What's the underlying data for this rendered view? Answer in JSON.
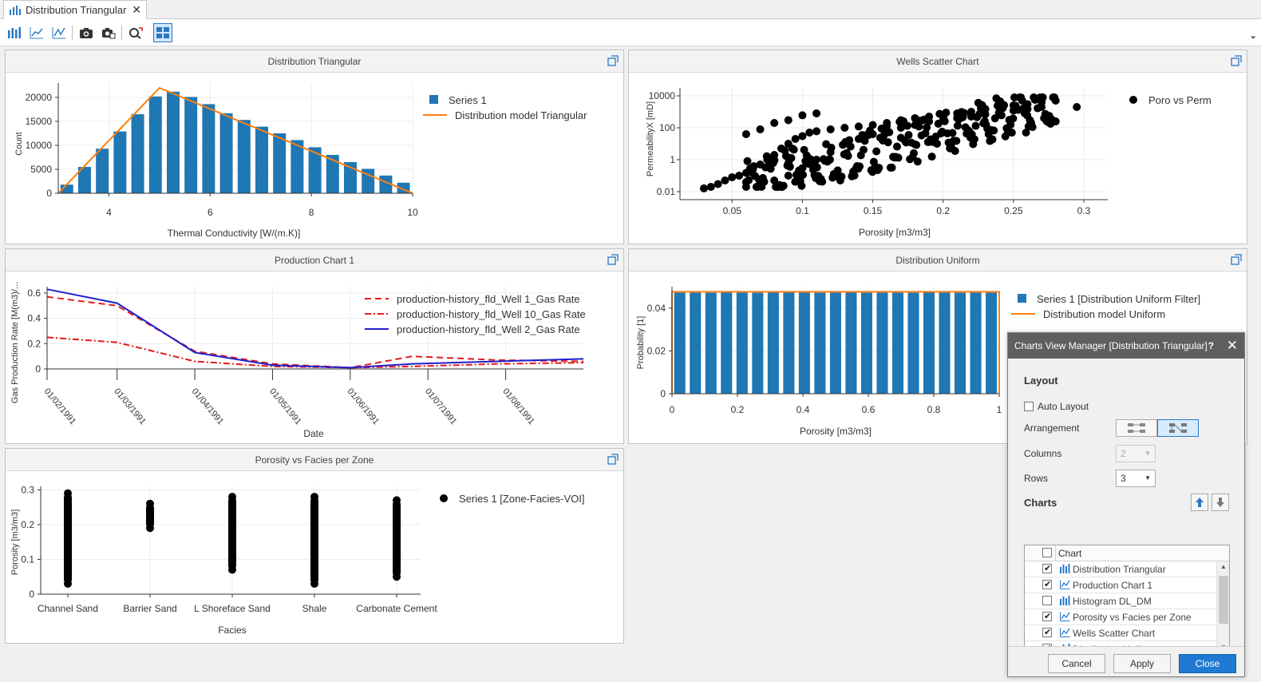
{
  "tab": {
    "title": "Distribution Triangular",
    "close": "✕"
  },
  "toolbar": {
    "icons": [
      "bar-chart-icon",
      "line-chart-icon",
      "scatter-chart-icon",
      "camera-icon",
      "camera-copy-icon",
      "refresh-chart-icon",
      "layout-grid-icon"
    ],
    "overflow": "⏷"
  },
  "panels": {
    "p1": "Distribution Triangular",
    "p2": "Wells Scatter Chart",
    "p3": "Production Chart 1",
    "p4": "Distribution Uniform",
    "p5": "Porosity vs Facies per Zone"
  },
  "chart_data": [
    {
      "type": "bar",
      "title": "Distribution Triangular",
      "xlabel": "Thermal Conductivity [W/(m.K)]",
      "ylabel": "Count",
      "xlim": [
        3,
        10
      ],
      "ylim": [
        0,
        23000
      ],
      "xticks": [
        4,
        6,
        8,
        10
      ],
      "yticks": [
        0,
        5000,
        10000,
        15000,
        20000
      ],
      "yticklabels": [
        "0",
        "5000",
        "10000",
        "15000",
        "20000"
      ],
      "bin_width": 0.35,
      "bars_x": [
        3.17,
        3.52,
        3.87,
        4.22,
        4.57,
        4.92,
        5.27,
        5.62,
        5.97,
        6.32,
        6.67,
        7.02,
        7.37,
        7.72,
        8.07,
        8.42,
        8.77,
        9.12,
        9.47,
        9.82
      ],
      "bars_y": [
        1800,
        5500,
        9300,
        12900,
        16500,
        20200,
        21200,
        20100,
        18600,
        16700,
        15300,
        13900,
        12500,
        11100,
        9600,
        8000,
        6500,
        5100,
        3700,
        2200
      ],
      "series": [
        {
          "name": "Series 1",
          "color": "#1f77b4"
        },
        {
          "name": "Distribution model Triangular",
          "color": "#ff7f0e",
          "x": [
            3,
            5,
            10
          ],
          "y": [
            0,
            22000,
            0
          ]
        }
      ],
      "grid": true,
      "legend": "top-right"
    },
    {
      "type": "scatter",
      "title": "Wells Scatter Chart",
      "xlabel": "Porosity [m3/m3]",
      "ylabel": "PermeabilityX [mD]",
      "xlim": [
        0.03,
        0.3
      ],
      "ylim": [
        0.01,
        10000
      ],
      "yscale": "log",
      "xticks": [
        0.05,
        0.1,
        0.15,
        0.2,
        0.25,
        0.3
      ],
      "xticklabels": [
        "0.05",
        "0.1",
        "0.15",
        "0.2",
        "0.25",
        "0.3"
      ],
      "yticks": [
        0.01,
        1,
        100,
        10000
      ],
      "yticklabels": [
        "0.01",
        "1",
        "100",
        "10000"
      ],
      "series": [
        {
          "name": "Poro vs Perm",
          "color": "#000000"
        }
      ],
      "points": [
        [
          0.03,
          0.016
        ],
        [
          0.035,
          0.02
        ],
        [
          0.04,
          0.03
        ],
        [
          0.045,
          0.05
        ],
        [
          0.05,
          0.08
        ],
        [
          0.055,
          0.1
        ],
        [
          0.06,
          0.15
        ],
        [
          0.065,
          0.3
        ],
        [
          0.07,
          0.5
        ],
        [
          0.075,
          1
        ],
        [
          0.08,
          2
        ],
        [
          0.085,
          5
        ],
        [
          0.09,
          10
        ],
        [
          0.095,
          20
        ],
        [
          0.1,
          30
        ],
        [
          0.105,
          50
        ],
        [
          0.11,
          60
        ],
        [
          0.12,
          80
        ],
        [
          0.13,
          100
        ],
        [
          0.14,
          120
        ],
        [
          0.15,
          150
        ],
        [
          0.16,
          200
        ],
        [
          0.17,
          300
        ],
        [
          0.18,
          400
        ],
        [
          0.19,
          500
        ],
        [
          0.2,
          600
        ],
        [
          0.21,
          800
        ],
        [
          0.22,
          1000
        ],
        [
          0.23,
          1500
        ],
        [
          0.24,
          2000
        ],
        [
          0.25,
          2500
        ],
        [
          0.26,
          3000
        ],
        [
          0.27,
          4000
        ],
        [
          0.28,
          5000
        ],
        [
          0.295,
          2000
        ],
        [
          0.06,
          40
        ],
        [
          0.07,
          80
        ],
        [
          0.08,
          200
        ],
        [
          0.09,
          300
        ],
        [
          0.1,
          600
        ],
        [
          0.11,
          800
        ],
        [
          0.06,
          0.02
        ],
        [
          0.07,
          0.03
        ],
        [
          0.08,
          0.05
        ],
        [
          0.09,
          0.1
        ],
        [
          0.1,
          0.3
        ],
        [
          0.11,
          1
        ],
        [
          0.12,
          3
        ],
        [
          0.13,
          10
        ],
        [
          0.14,
          20
        ],
        [
          0.15,
          40
        ],
        [
          0.16,
          60
        ],
        [
          0.17,
          100
        ],
        [
          0.18,
          150
        ],
        [
          0.19,
          250
        ],
        [
          0.2,
          300
        ],
        [
          0.21,
          400
        ],
        [
          0.22,
          500
        ],
        [
          0.23,
          700
        ],
        [
          0.24,
          900
        ],
        [
          0.25,
          1200
        ],
        [
          0.26,
          1500
        ],
        [
          0.27,
          2000
        ],
        [
          0.28,
          250
        ]
      ],
      "grid": true,
      "legend": "top-right"
    },
    {
      "type": "line",
      "title": "Production Chart 1",
      "xlabel": "Date",
      "ylabel": "Gas Production Rate [M(m3)/...",
      "xticklabels": [
        "01/02/1991",
        "01/03/1991",
        "01/04/1991",
        "01/05/1991",
        "01/06/1991",
        "01/07/1991",
        "01/08/1991"
      ],
      "xlim": [
        0,
        6.9
      ],
      "ylim": [
        0,
        0.65
      ],
      "yticks": [
        0,
        0.2,
        0.4,
        0.6
      ],
      "yticklabels": [
        "0",
        "0.2",
        "0.4",
        "0.6"
      ],
      "series": [
        {
          "name": "production-history_fld_Well 1_Gas Rate",
          "color": "#e31a1c",
          "dash": "8,5",
          "x": [
            0,
            0.9,
            1.9,
            2.9,
            3.9,
            4.7,
            5.8,
            6.9
          ],
          "y": [
            0.57,
            0.5,
            0.14,
            0.04,
            0.01,
            0.1,
            0.07,
            0.06
          ]
        },
        {
          "name": "production-history_fld_Well 10_Gas Rate",
          "color": "#e31a1c",
          "dash": "8,3,2,3",
          "x": [
            0,
            0.9,
            1.9,
            2.9,
            3.9,
            4.7,
            5.8,
            6.9
          ],
          "y": [
            0.25,
            0.21,
            0.06,
            0.02,
            0.01,
            0.02,
            0.04,
            0.05
          ]
        },
        {
          "name": "production-history_fld_Well 2_Gas Rate",
          "color": "#1f1fcc",
          "dash": "",
          "x": [
            0,
            0.9,
            1.9,
            2.9,
            3.9,
            4.7,
            5.8,
            6.9
          ],
          "y": [
            0.63,
            0.52,
            0.13,
            0.03,
            0.01,
            0.04,
            0.06,
            0.08
          ]
        }
      ],
      "grid": true,
      "legend": "top-right"
    },
    {
      "type": "bar",
      "title": "Distribution Uniform",
      "xlabel": "Porosity [m3/m3]",
      "ylabel": "Probability [1]",
      "xlim": [
        0,
        1
      ],
      "ylim": [
        0,
        0.05
      ],
      "xticks": [
        0,
        0.2,
        0.4,
        0.6,
        0.8,
        1
      ],
      "xticklabels": [
        "0",
        "0.2",
        "0.4",
        "0.6",
        "0.8",
        "1"
      ],
      "yticks": [
        0,
        0.02,
        0.04
      ],
      "yticklabels": [
        "0",
        "0.02",
        "0.04"
      ],
      "bin_width": 0.0476,
      "bars_y": [
        0.0473,
        0.0473,
        0.0472,
        0.0474,
        0.0473,
        0.0472,
        0.0474,
        0.0475,
        0.0473,
        0.0472,
        0.0473,
        0.0474,
        0.0472,
        0.0473,
        0.0473,
        0.0472,
        0.0474,
        0.0473,
        0.0472,
        0.0473,
        0.0473
      ],
      "series": [
        {
          "name": "Series 1 [Distribution Uniform Filter]",
          "color": "#1f77b4"
        },
        {
          "name": "Distribution model Uniform",
          "color": "#ff7f0e",
          "y": 0.0476
        }
      ],
      "grid": true,
      "legend": "top-right"
    },
    {
      "type": "scatter",
      "title": "Porosity vs Facies per Zone",
      "xlabel": "Facies",
      "ylabel": "Porosity [m3/m3]",
      "categories": [
        "Channel Sand",
        "Barrier Sand",
        "L Shoreface Sand",
        "Shale",
        "Carbonate Cement"
      ],
      "ylim": [
        0,
        0.31
      ],
      "yticks": [
        0,
        0.1,
        0.2,
        0.3
      ],
      "yticklabels": [
        "0",
        "0.1",
        "0.2",
        "0.3"
      ],
      "ranges": [
        [
          0.03,
          0.29
        ],
        [
          0.19,
          0.26
        ],
        [
          0.07,
          0.28
        ],
        [
          0.03,
          0.28
        ],
        [
          0.05,
          0.27
        ]
      ],
      "series": [
        {
          "name": "Series 1 [Zone-Facies-VOI]",
          "color": "#000000"
        }
      ],
      "grid": true,
      "legend": "top-right"
    }
  ],
  "dialog": {
    "title": "Charts View Manager [Distribution Triangular]",
    "help": "?",
    "close": "✕",
    "layout_header": "Layout",
    "auto_layout": "Auto Layout",
    "arrangement": "Arrangement",
    "columns_label": "Columns",
    "columns_value": "2",
    "rows_label": "Rows",
    "rows_value": "3",
    "charts_header": "Charts",
    "col_chart": "Chart",
    "rows": [
      {
        "label": "Distribution Triangular",
        "checked": true,
        "icon": "bar-chart-icon"
      },
      {
        "label": "Production Chart 1",
        "checked": true,
        "icon": "line-chart-icon"
      },
      {
        "label": "Histogram DL_DM",
        "checked": false,
        "icon": "bar-chart-icon"
      },
      {
        "label": "Porosity vs Facies per Zone",
        "checked": true,
        "icon": "scatter-chart-icon"
      },
      {
        "label": "Wells Scatter Chart",
        "checked": true,
        "icon": "scatter-chart-icon"
      },
      {
        "label": "Distribution Uniform",
        "checked": true,
        "icon": "bar-chart-icon"
      }
    ],
    "cancel": "Cancel",
    "apply": "Apply",
    "close_btn": "Close"
  }
}
